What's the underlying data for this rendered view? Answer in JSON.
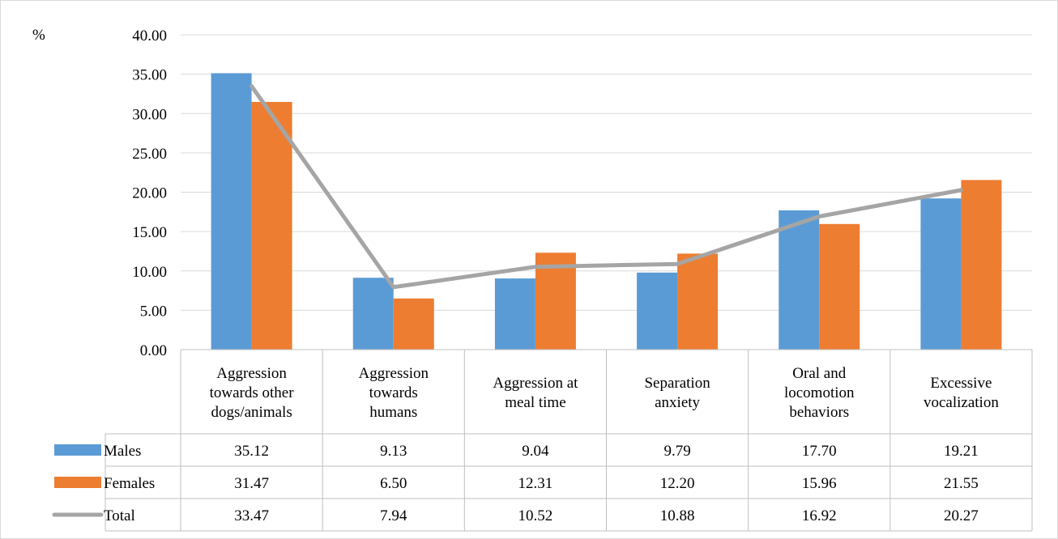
{
  "chart_data": {
    "type": "bar",
    "ylabel": "%",
    "ylim": [
      0,
      40
    ],
    "yticks": [
      "0.00",
      "5.00",
      "10.00",
      "15.00",
      "20.00",
      "25.00",
      "30.00",
      "35.00",
      "40.00"
    ],
    "categories": [
      [
        "Aggression",
        "towards other",
        "dogs/animals"
      ],
      [
        "Aggression",
        "towards",
        "humans"
      ],
      [
        "Aggression at",
        "meal time"
      ],
      [
        "Separation",
        "anxiety"
      ],
      [
        "Oral and",
        "locomotion",
        "behaviors"
      ],
      [
        "Excessive",
        "vocalization"
      ]
    ],
    "series": [
      {
        "name": "Males",
        "kind": "bar",
        "color": "#5b9bd5",
        "values": [
          35.12,
          9.13,
          9.04,
          9.79,
          17.7,
          19.21
        ],
        "labels": [
          "35.12",
          "9.13",
          "9.04",
          "9.79",
          "17.70",
          "19.21"
        ]
      },
      {
        "name": "Females",
        "kind": "bar",
        "color": "#ed7d31",
        "values": [
          31.47,
          6.5,
          12.31,
          12.2,
          15.96,
          21.55
        ],
        "labels": [
          "31.47",
          "6.50",
          "12.31",
          "12.20",
          "15.96",
          "21.55"
        ]
      },
      {
        "name": "Total",
        "kind": "line",
        "color": "#a5a5a5",
        "values": [
          33.47,
          7.94,
          10.52,
          10.88,
          16.92,
          20.27
        ],
        "labels": [
          "33.47",
          "7.94",
          "10.52",
          "10.88",
          "16.92",
          "20.27"
        ]
      }
    ],
    "grid": true,
    "legend": "data-table"
  }
}
